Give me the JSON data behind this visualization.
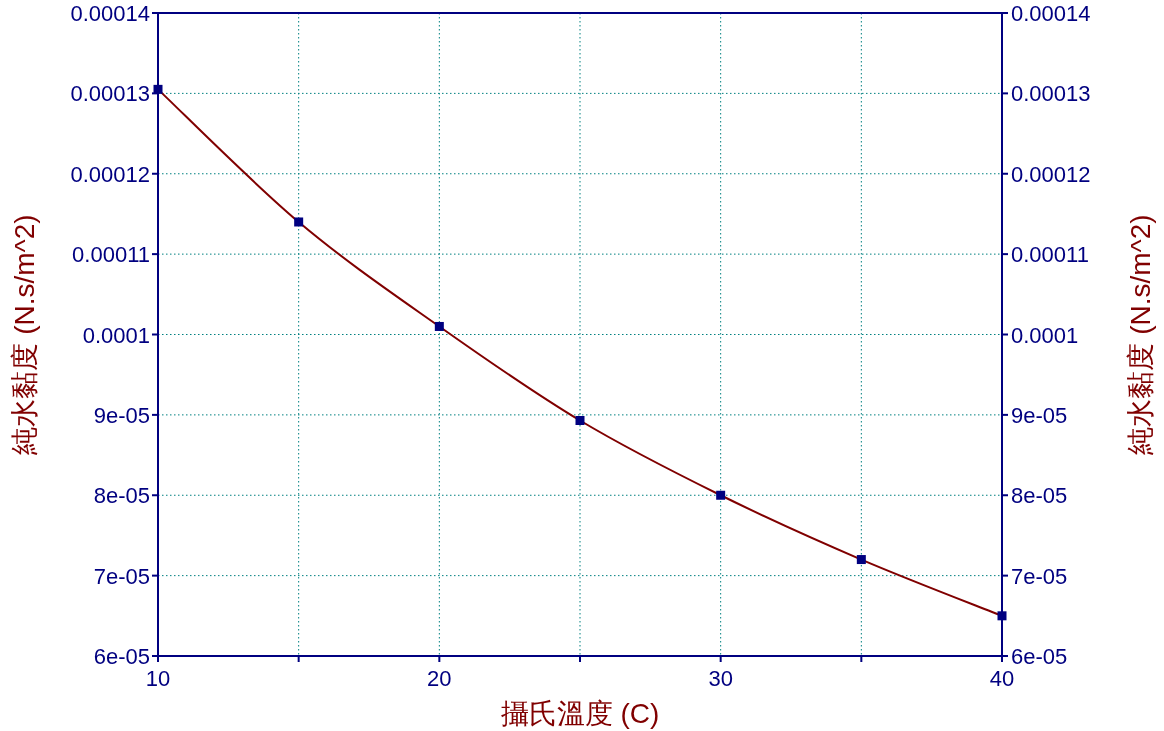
{
  "chart_data": {
    "type": "line",
    "xlabel": "攝氏溫度 (C)",
    "ylabel": "純水黏度 (N.s/m^2)",
    "y2label": "純水黏度 (N.s/m^2)",
    "x": [
      10,
      15,
      20,
      25,
      30,
      35,
      40
    ],
    "series": [
      {
        "color": "#800000",
        "marker": "none",
        "values": [
          0.0001305,
          0.000114,
          0.000101,
          8.93e-05,
          8e-05,
          7.2e-05,
          6.5e-05
        ]
      },
      {
        "type": "scatter",
        "color": "#000080",
        "marker": "square",
        "values": [
          0.0001305,
          0.000114,
          0.000101,
          8.93e-05,
          8e-05,
          7.2e-05,
          6.5e-05
        ]
      }
    ],
    "xlim": [
      10,
      40
    ],
    "xticks": [
      10,
      20,
      30,
      40
    ],
    "ylim": [
      6e-05,
      0.00014
    ],
    "yticks": [
      {
        "value": 6e-05,
        "label": "6e-05"
      },
      {
        "value": 7e-05,
        "label": "7e-05"
      },
      {
        "value": 8e-05,
        "label": "8e-05"
      },
      {
        "value": 9e-05,
        "label": "9e-05"
      },
      {
        "value": 0.0001,
        "label": "0.0001"
      },
      {
        "value": 0.00011,
        "label": "0.00011"
      },
      {
        "value": 0.00012,
        "label": "0.00012"
      },
      {
        "value": 0.00013,
        "label": "0.00013"
      },
      {
        "value": 0.00014,
        "label": "0.00014"
      }
    ],
    "y2lim": [
      6e-05,
      0.00014
    ],
    "y2ticks": [
      {
        "value": 6e-05,
        "label": "6e-05"
      },
      {
        "value": 7e-05,
        "label": "7e-05"
      },
      {
        "value": 8e-05,
        "label": "8e-05"
      },
      {
        "value": 9e-05,
        "label": "9e-05"
      },
      {
        "value": 0.0001,
        "label": "0.0001"
      },
      {
        "value": 0.00011,
        "label": "0.00011"
      },
      {
        "value": 0.00012,
        "label": "0.00012"
      },
      {
        "value": 0.00013,
        "label": "0.00013"
      },
      {
        "value": 0.00014,
        "label": "0.00014"
      }
    ],
    "grid": true
  }
}
